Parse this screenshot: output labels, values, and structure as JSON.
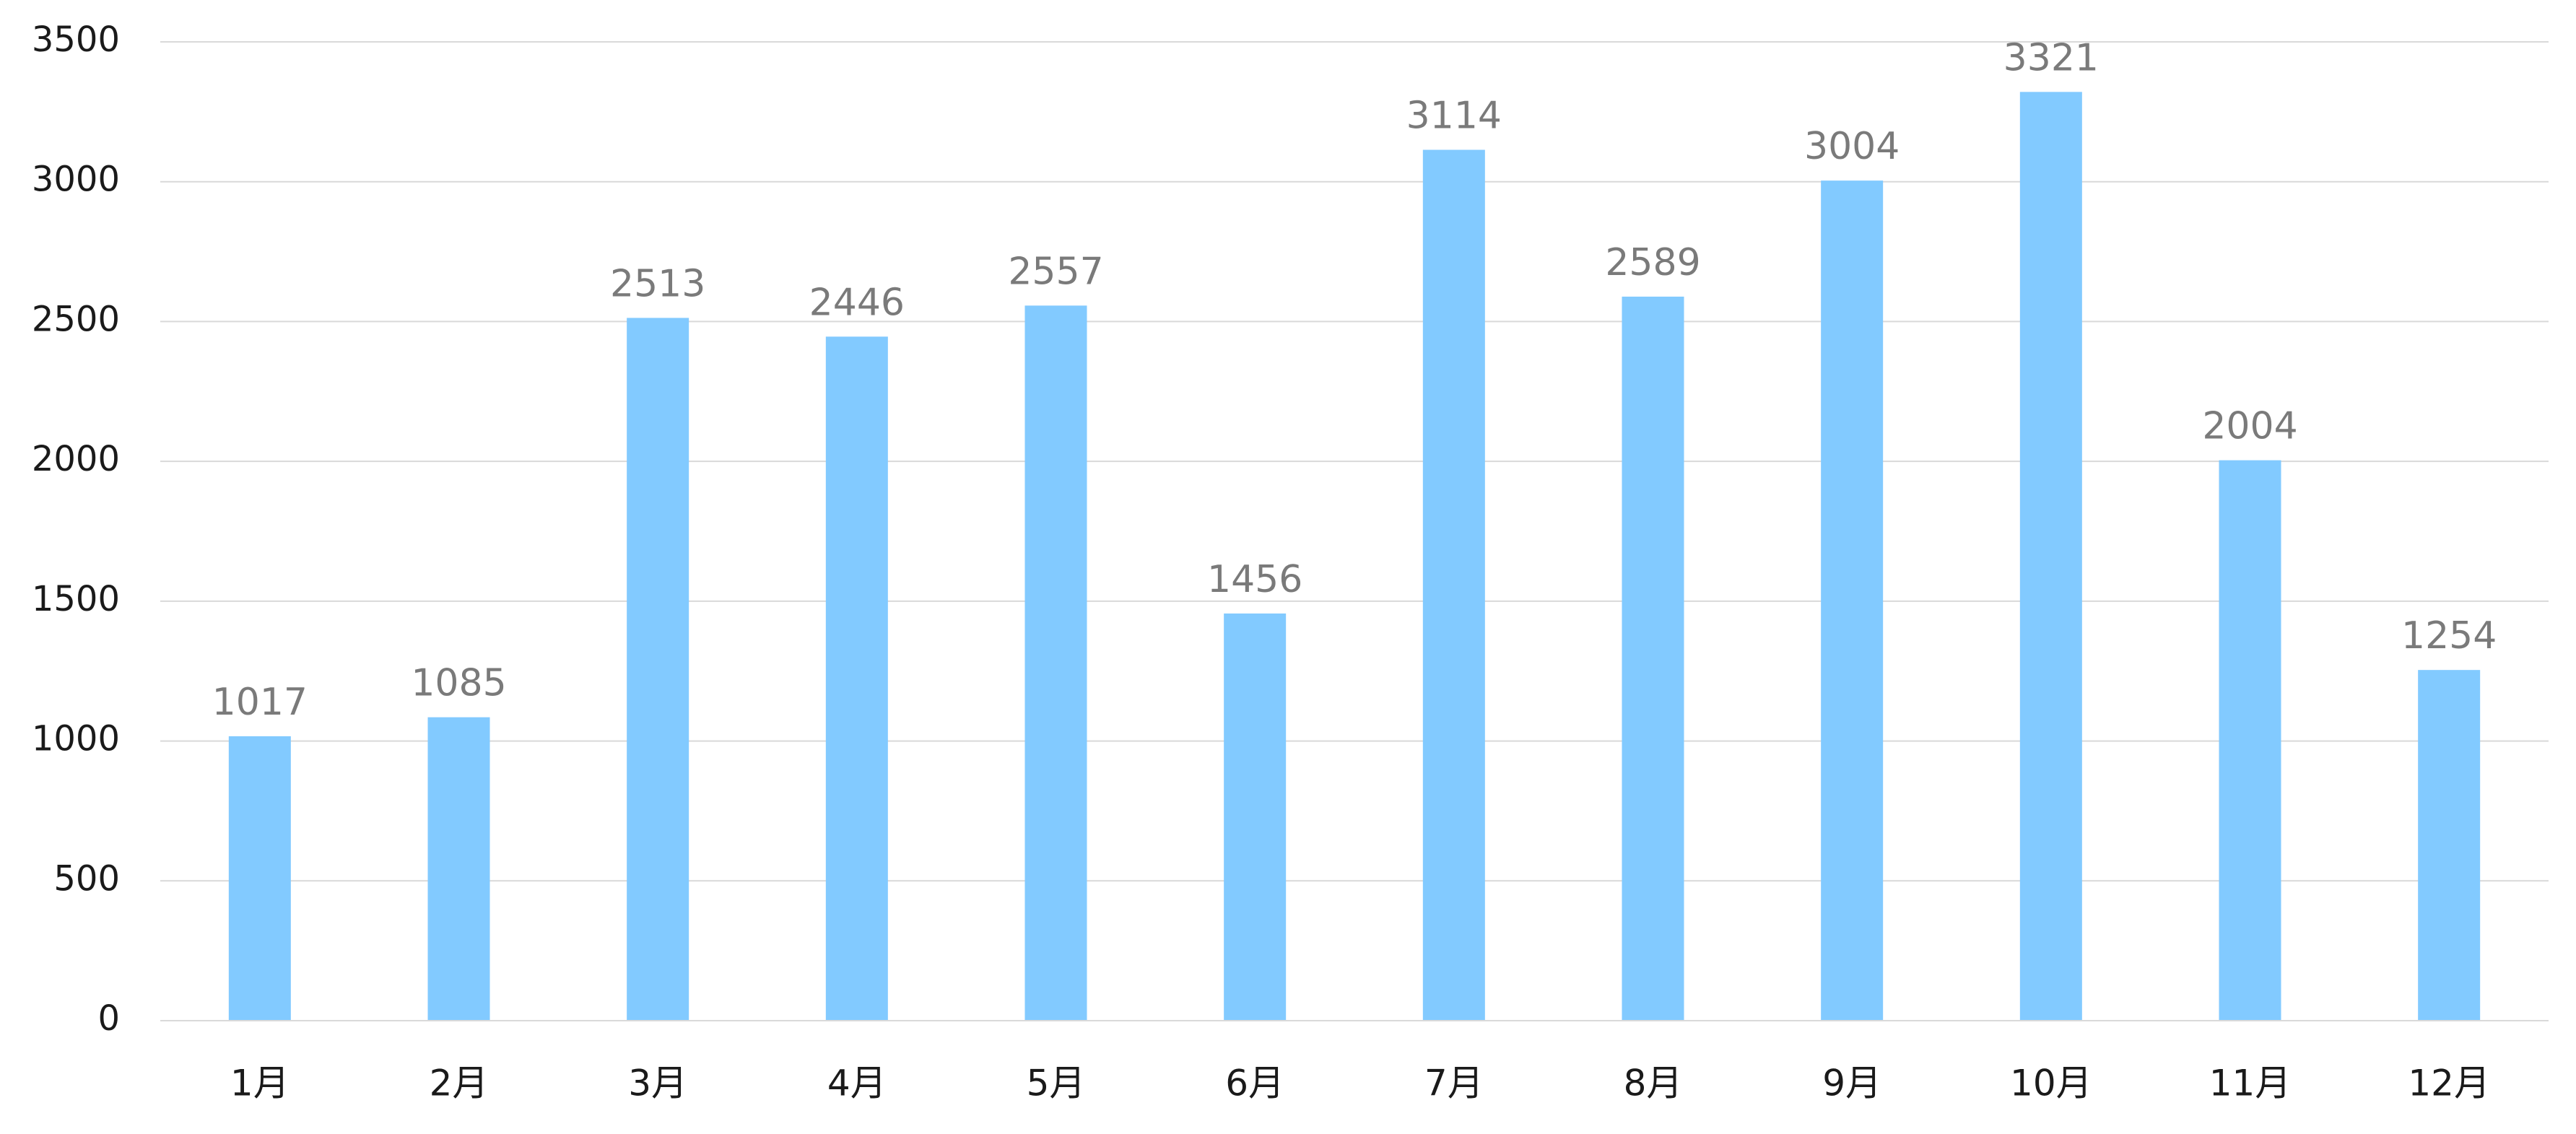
{
  "chart_data": {
    "type": "bar",
    "title": "",
    "xlabel": "",
    "ylabel": "",
    "categories": [
      "1月",
      "2月",
      "3月",
      "4月",
      "5月",
      "6月",
      "7月",
      "8月",
      "9月",
      "10月",
      "11月",
      "12月"
    ],
    "values": [
      1017,
      1085,
      2513,
      2446,
      2557,
      1456,
      3114,
      2589,
      3004,
      3321,
      2004,
      1254
    ],
    "ylim": [
      0,
      3500
    ],
    "yticks": [
      0,
      500,
      1000,
      1500,
      2000,
      2500,
      3000,
      3500
    ],
    "grid": true,
    "legend": "none",
    "data_labels": true,
    "bar_color": "#82CAFF",
    "label_color": "#7a7a7a",
    "grid_color": "#d9d9d9"
  }
}
